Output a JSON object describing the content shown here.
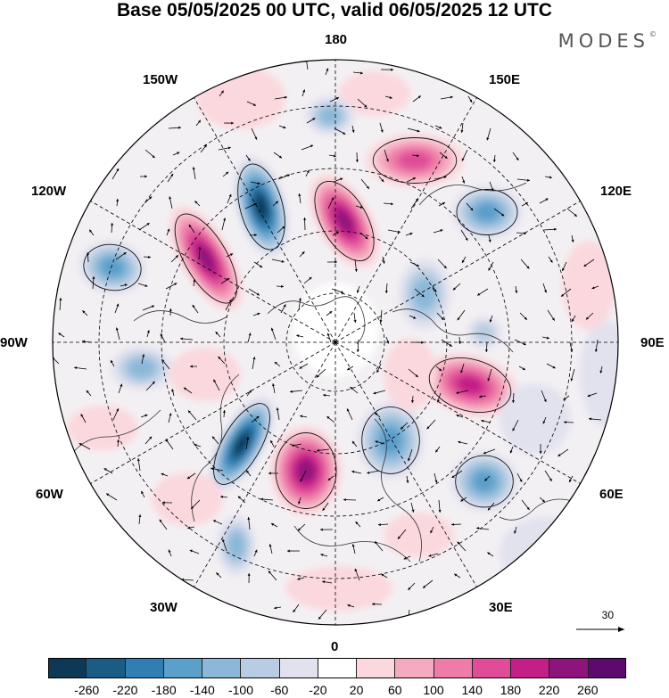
{
  "title": "Base 05/05/2025 00 UTC, valid 06/05/2025 12 UTC",
  "logo": "MODES",
  "logo_mark": "©",
  "longitude_labels": {
    "top": "180",
    "bottom": "0",
    "left": "90W",
    "right": "90E",
    "upper_left_1": "150W",
    "upper_left_2": "120W",
    "upper_right_1": "150E",
    "upper_right_2": "120E",
    "lower_left_1": "60W",
    "lower_left_2": "30W",
    "lower_right_1": "60E",
    "lower_right_2": "30E"
  },
  "reference_vector": "30",
  "colorbar": {
    "colors": [
      "#0d3957",
      "#1a5c86",
      "#2f7fb2",
      "#5b9fcb",
      "#8bb8d8",
      "#b8cde3",
      "#e2e2ef",
      "#ffffff",
      "#fbd8dd",
      "#f5aac0",
      "#ee7ba8",
      "#e04c97",
      "#c41f88",
      "#8f137d",
      "#5d0a6e"
    ],
    "tick_labels": [
      "-260",
      "-220",
      "-180",
      "-140",
      "-100",
      "-60",
      "-20",
      "20",
      "60",
      "100",
      "140",
      "180",
      "220",
      "260"
    ]
  },
  "map_features": {
    "projection": "north-polar-stereographic",
    "graticule": "dashed",
    "wind_vectors": true
  }
}
